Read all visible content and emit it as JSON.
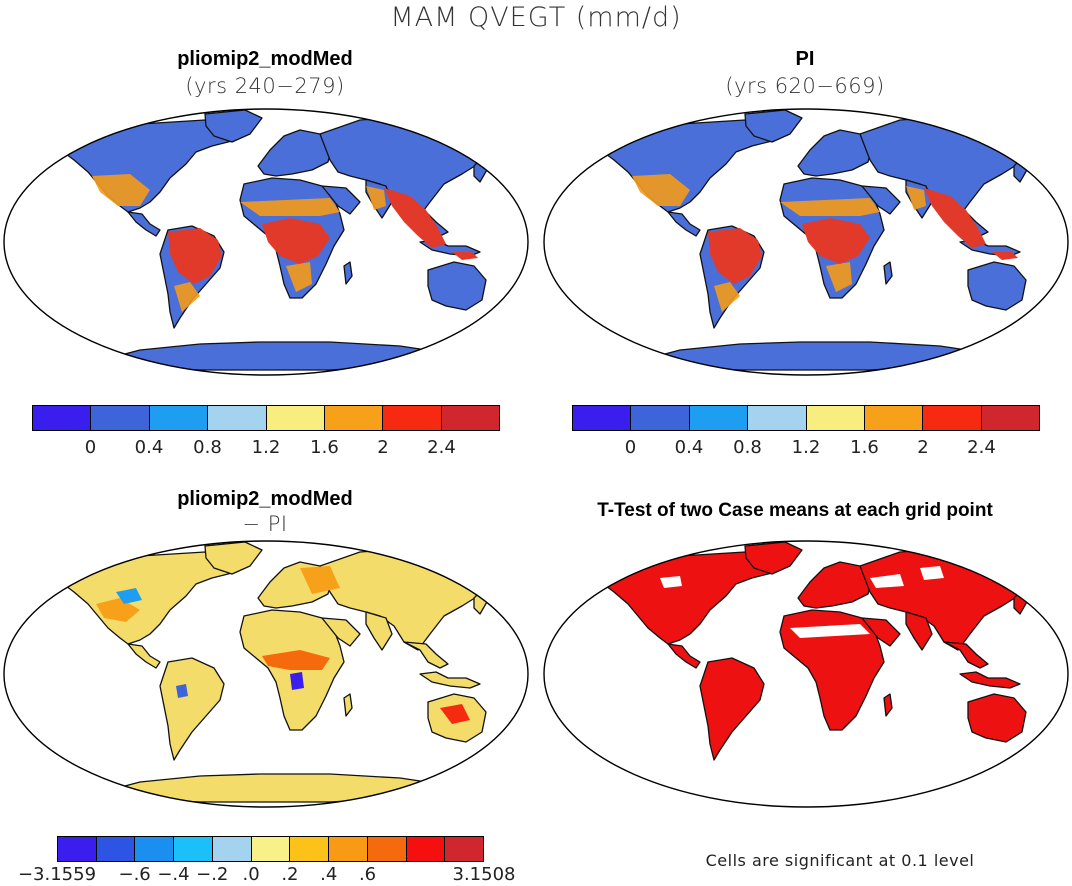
{
  "title": "MAM QVEGT (mm/d)",
  "panels": {
    "top_left": {
      "title": "pliomip2_modMed",
      "subtitle": "(yrs 240−279)"
    },
    "top_right": {
      "title": "PI",
      "subtitle": "(yrs 620−669)"
    },
    "bottom_left": {
      "title": "pliomip2_modMed",
      "subtitle": "− PI"
    },
    "bottom_right": {
      "title": "T-Test of two Case means at each grid point"
    }
  },
  "colorbar_abs": {
    "colors": [
      "#3a1eee",
      "#3e64d9",
      "#1e9ef0",
      "#a3d3ee",
      "#f8ee80",
      "#f7a11b",
      "#f52a10",
      "#d0262d"
    ],
    "labels": [
      "0",
      "0.4",
      "0.8",
      "1.2",
      "1.6",
      "2",
      "2.4"
    ]
  },
  "colorbar_diff": {
    "colors": [
      "#3a1eee",
      "#2e54e6",
      "#1a8ff0",
      "#1cc0f8",
      "#a3d3ee",
      "#f8f088",
      "#fcc219",
      "#f99a14",
      "#f56a0c",
      "#f50f0f",
      "#d0262d"
    ],
    "labels": [
      "−3.1559",
      "−.6",
      "−.4",
      "−.2",
      ".0",
      ".2",
      ".4",
      ".6",
      "3.1508"
    ]
  },
  "significance_note": "Cells are significant at 0.1 level",
  "map_colors": {
    "land_base": "#4a6fd8",
    "tropics": "#e23a2a",
    "warm": "#f49a1a",
    "diff_base": "#f4dc6a",
    "ttest": "#ee1111",
    "ocean": "#ffffff"
  }
}
